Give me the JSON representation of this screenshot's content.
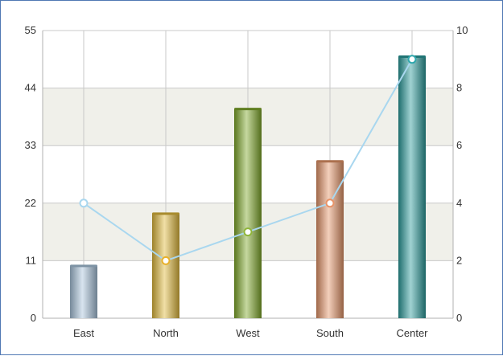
{
  "chart_data": {
    "type": "bar",
    "categories": [
      "East",
      "North",
      "West",
      "South",
      "Center"
    ],
    "series": [
      {
        "type": "bar",
        "axis": "left",
        "values": [
          10,
          20,
          40,
          30,
          50
        ],
        "colors": [
          "#a8c4dc",
          "#e0b93c",
          "#7fa82a",
          "#e59568",
          "#2b9c9c"
        ]
      },
      {
        "type": "line",
        "axis": "right",
        "values": [
          4,
          2,
          3,
          4,
          9
        ],
        "color": "#a9d7ef"
      }
    ],
    "y_left": {
      "min": 0,
      "max": 55,
      "ticks": [
        0,
        11,
        22,
        33,
        44,
        55
      ]
    },
    "y_right": {
      "min": 0,
      "max": 10,
      "ticks": [
        0,
        2,
        4,
        6,
        8,
        10
      ]
    },
    "grid": true,
    "band_color": "#f0f0ea",
    "point_colors": [
      "#a9d7ef",
      "#e8b12c",
      "#8fb53a",
      "#e89368",
      "#2ea7ad"
    ]
  }
}
